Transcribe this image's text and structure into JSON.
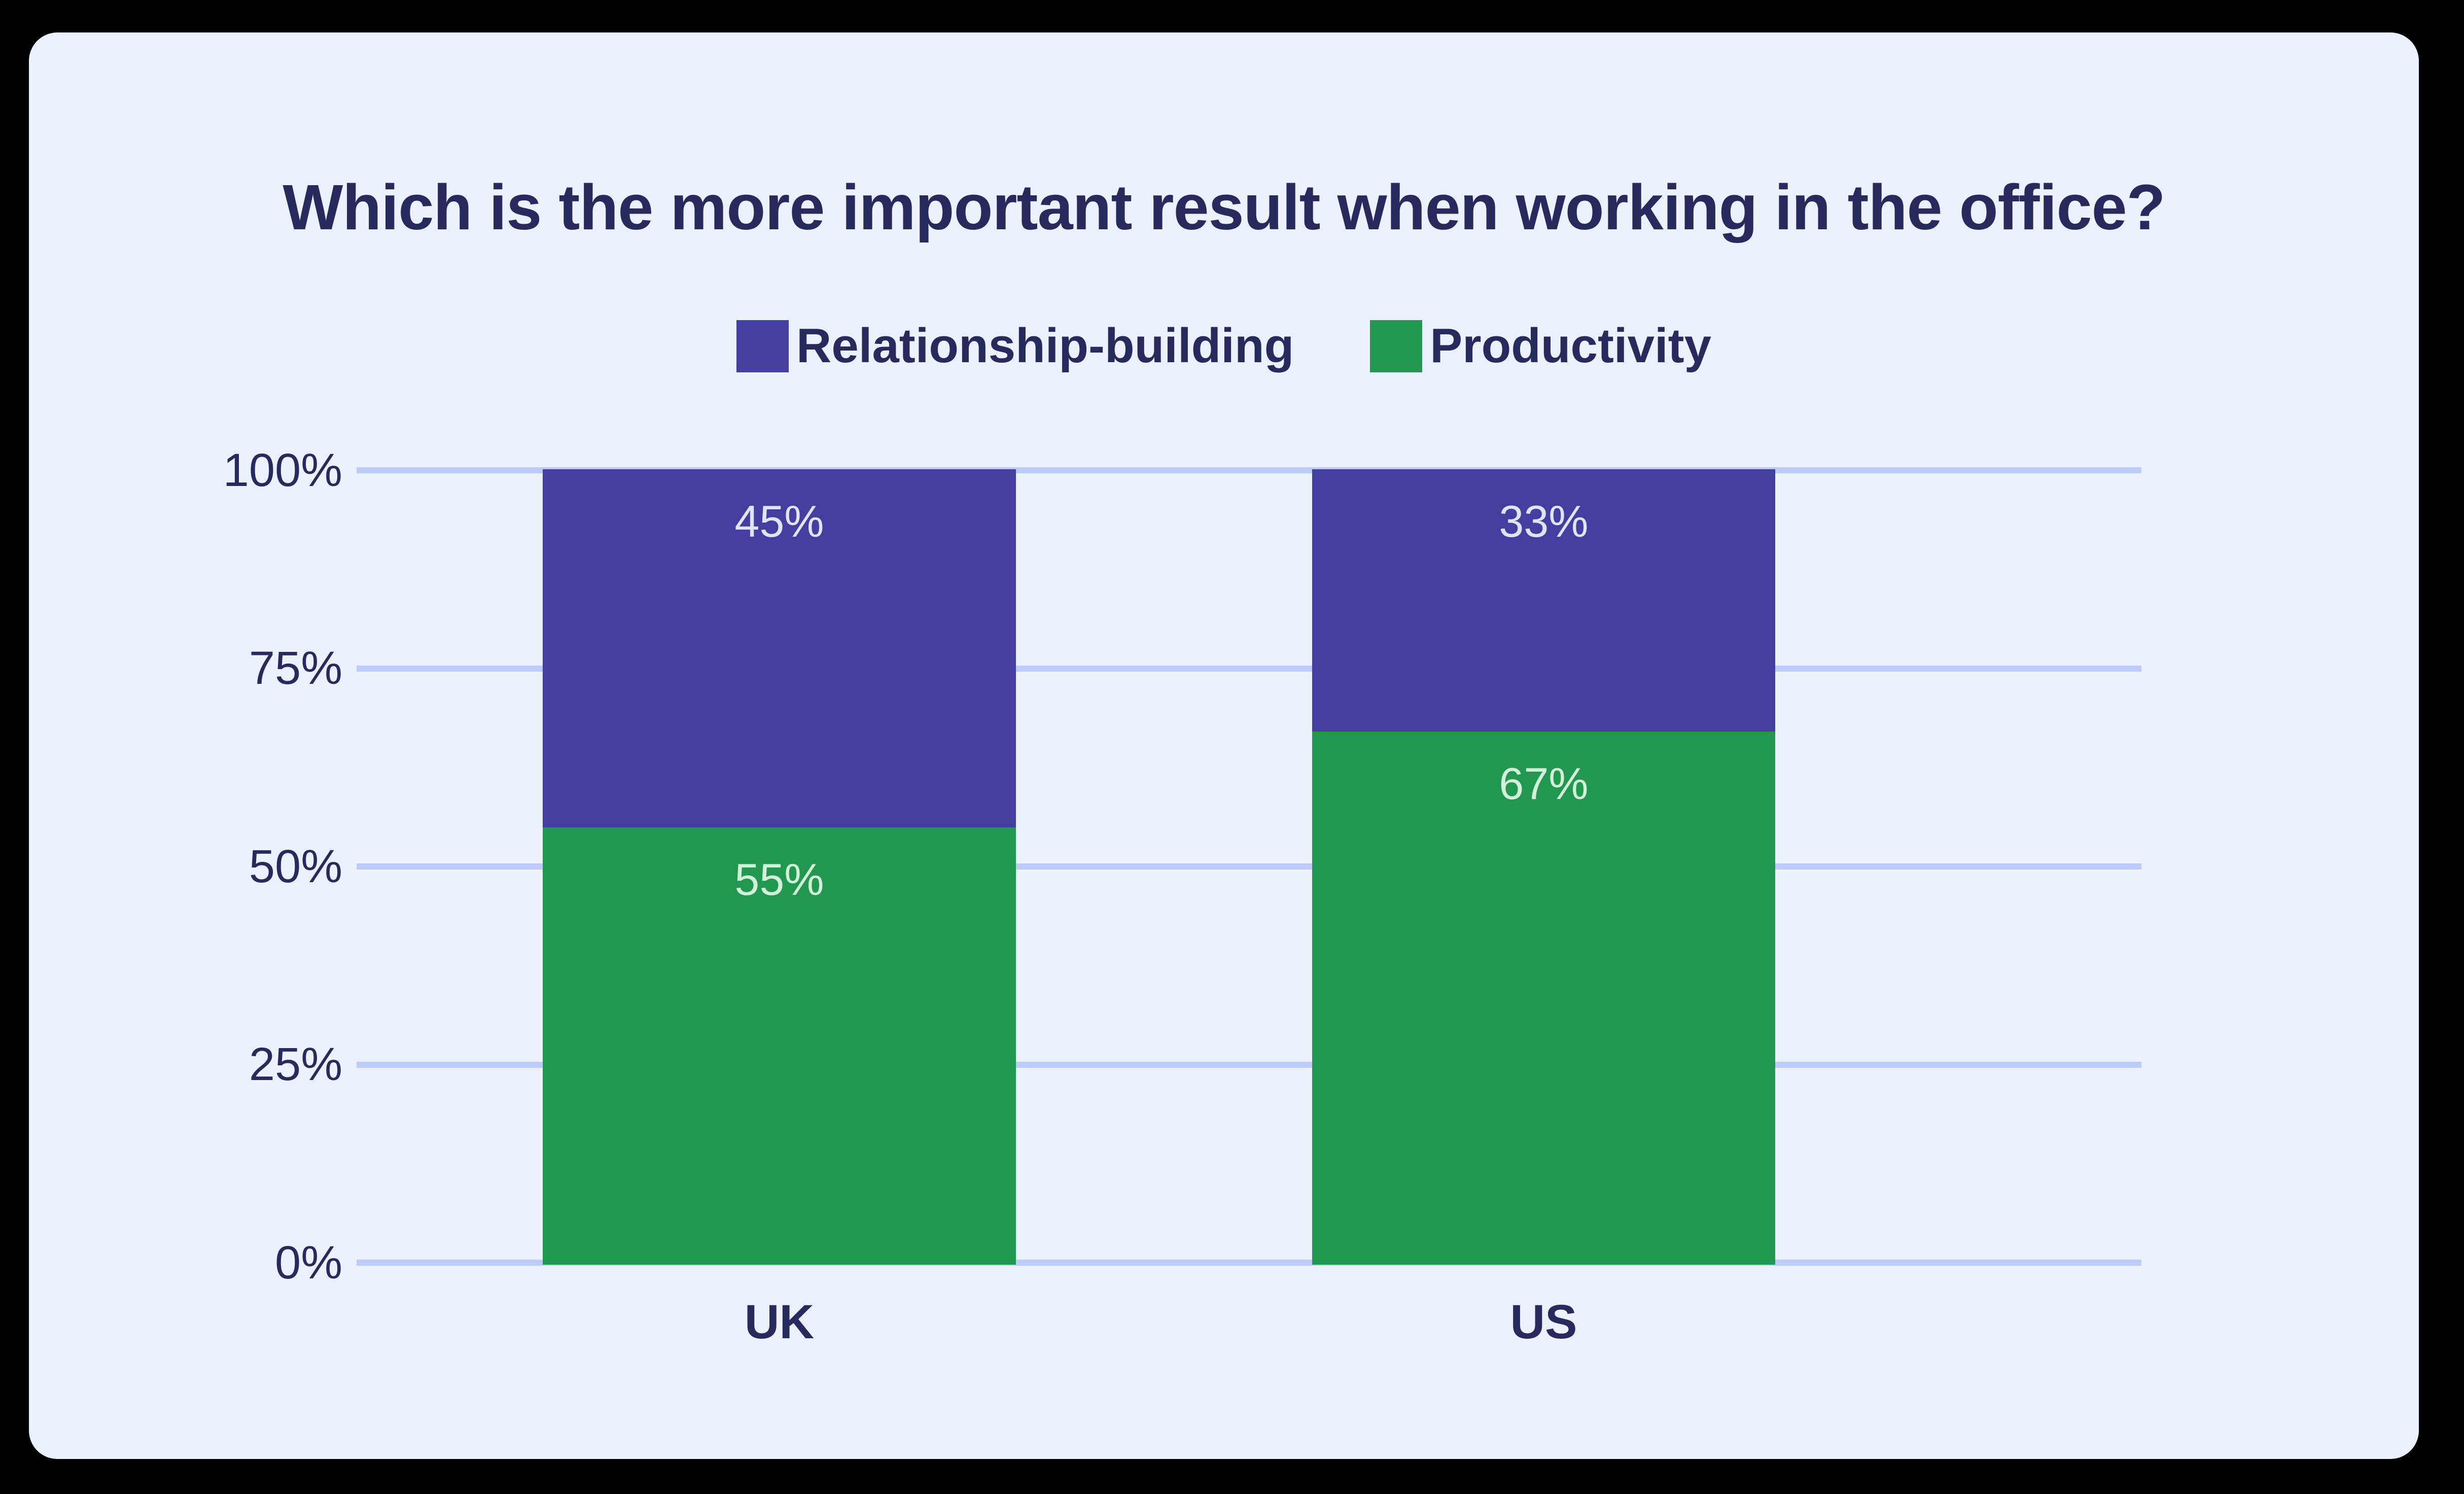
{
  "title": "Which is the more important result when working in the office?",
  "colors": {
    "background_outer": "#000000",
    "card_background": "#ebf1fd",
    "gridline": "#bdcbfa",
    "text_navy": "#262a5c",
    "relationship_purple": "#423fa0",
    "productivity_green": "#21974f",
    "label_on_purple": "#dee5fa",
    "label_on_green": "#d2f0da"
  },
  "legend": {
    "items": [
      {
        "label": "Relationship-building",
        "color": "#423fa0"
      },
      {
        "label": "Productivity",
        "color": "#21974f"
      }
    ]
  },
  "y_axis": {
    "ticks": [
      "100%",
      "75%",
      "50%",
      "25%",
      "0%"
    ]
  },
  "bars": [
    {
      "category": "UK",
      "segments": [
        {
          "series": "Relationship-building",
          "value": 45,
          "label": "45%"
        },
        {
          "series": "Productivity",
          "value": 55,
          "label": "55%"
        }
      ]
    },
    {
      "category": "US",
      "segments": [
        {
          "series": "Relationship-building",
          "value": 33,
          "label": "33%"
        },
        {
          "series": "Productivity",
          "value": 67,
          "label": "67%"
        }
      ]
    }
  ],
  "chart_data": {
    "type": "bar",
    "stacked": true,
    "title": "Which is the more important result when working in the office?",
    "categories": [
      "UK",
      "US"
    ],
    "series": [
      {
        "name": "Relationship-building",
        "color": "#423fa0",
        "values": [
          45,
          33
        ]
      },
      {
        "name": "Productivity",
        "color": "#21974f",
        "values": [
          55,
          67
        ]
      }
    ],
    "value_labels": [
      [
        "45%",
        "55%"
      ],
      [
        "33%",
        "67%"
      ]
    ],
    "xlabel": "",
    "ylabel": "",
    "ylim": [
      0,
      100
    ],
    "ytick_labels": [
      "0%",
      "25%",
      "50%",
      "75%",
      "100%"
    ],
    "grid": true,
    "gridlines": "horizontal",
    "legend_position": "top-center",
    "bar_label_position": "inside-top"
  }
}
